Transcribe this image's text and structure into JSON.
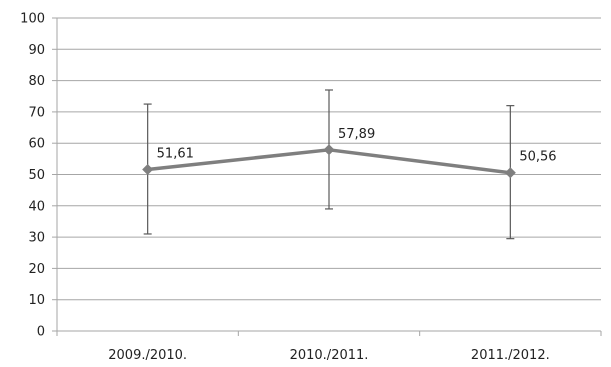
{
  "chart_data": {
    "type": "line",
    "categories": [
      "2009./2010.",
      "2010./2011.",
      "2011./2012."
    ],
    "series": [
      {
        "values": [
          51.61,
          57.89,
          50.56
        ],
        "error_low": [
          31,
          39,
          29.5
        ],
        "error_high": [
          72.5,
          77,
          72
        ],
        "data_labels": [
          "51,61",
          "57,89",
          "50,56"
        ]
      }
    ],
    "yticks": [
      "0",
      "10",
      "20",
      "30",
      "40",
      "50",
      "60",
      "70",
      "80",
      "90",
      "100"
    ],
    "ylim": [
      0,
      100
    ],
    "grid": true,
    "legend": "none",
    "title": "",
    "xlabel": "",
    "ylabel": "",
    "colors": {
      "line": "#7f7f7f",
      "marker": "#7f7f7f",
      "error_bar": "#595959",
      "grid": "#a6a6a6",
      "axis": "#a6a6a6"
    }
  }
}
